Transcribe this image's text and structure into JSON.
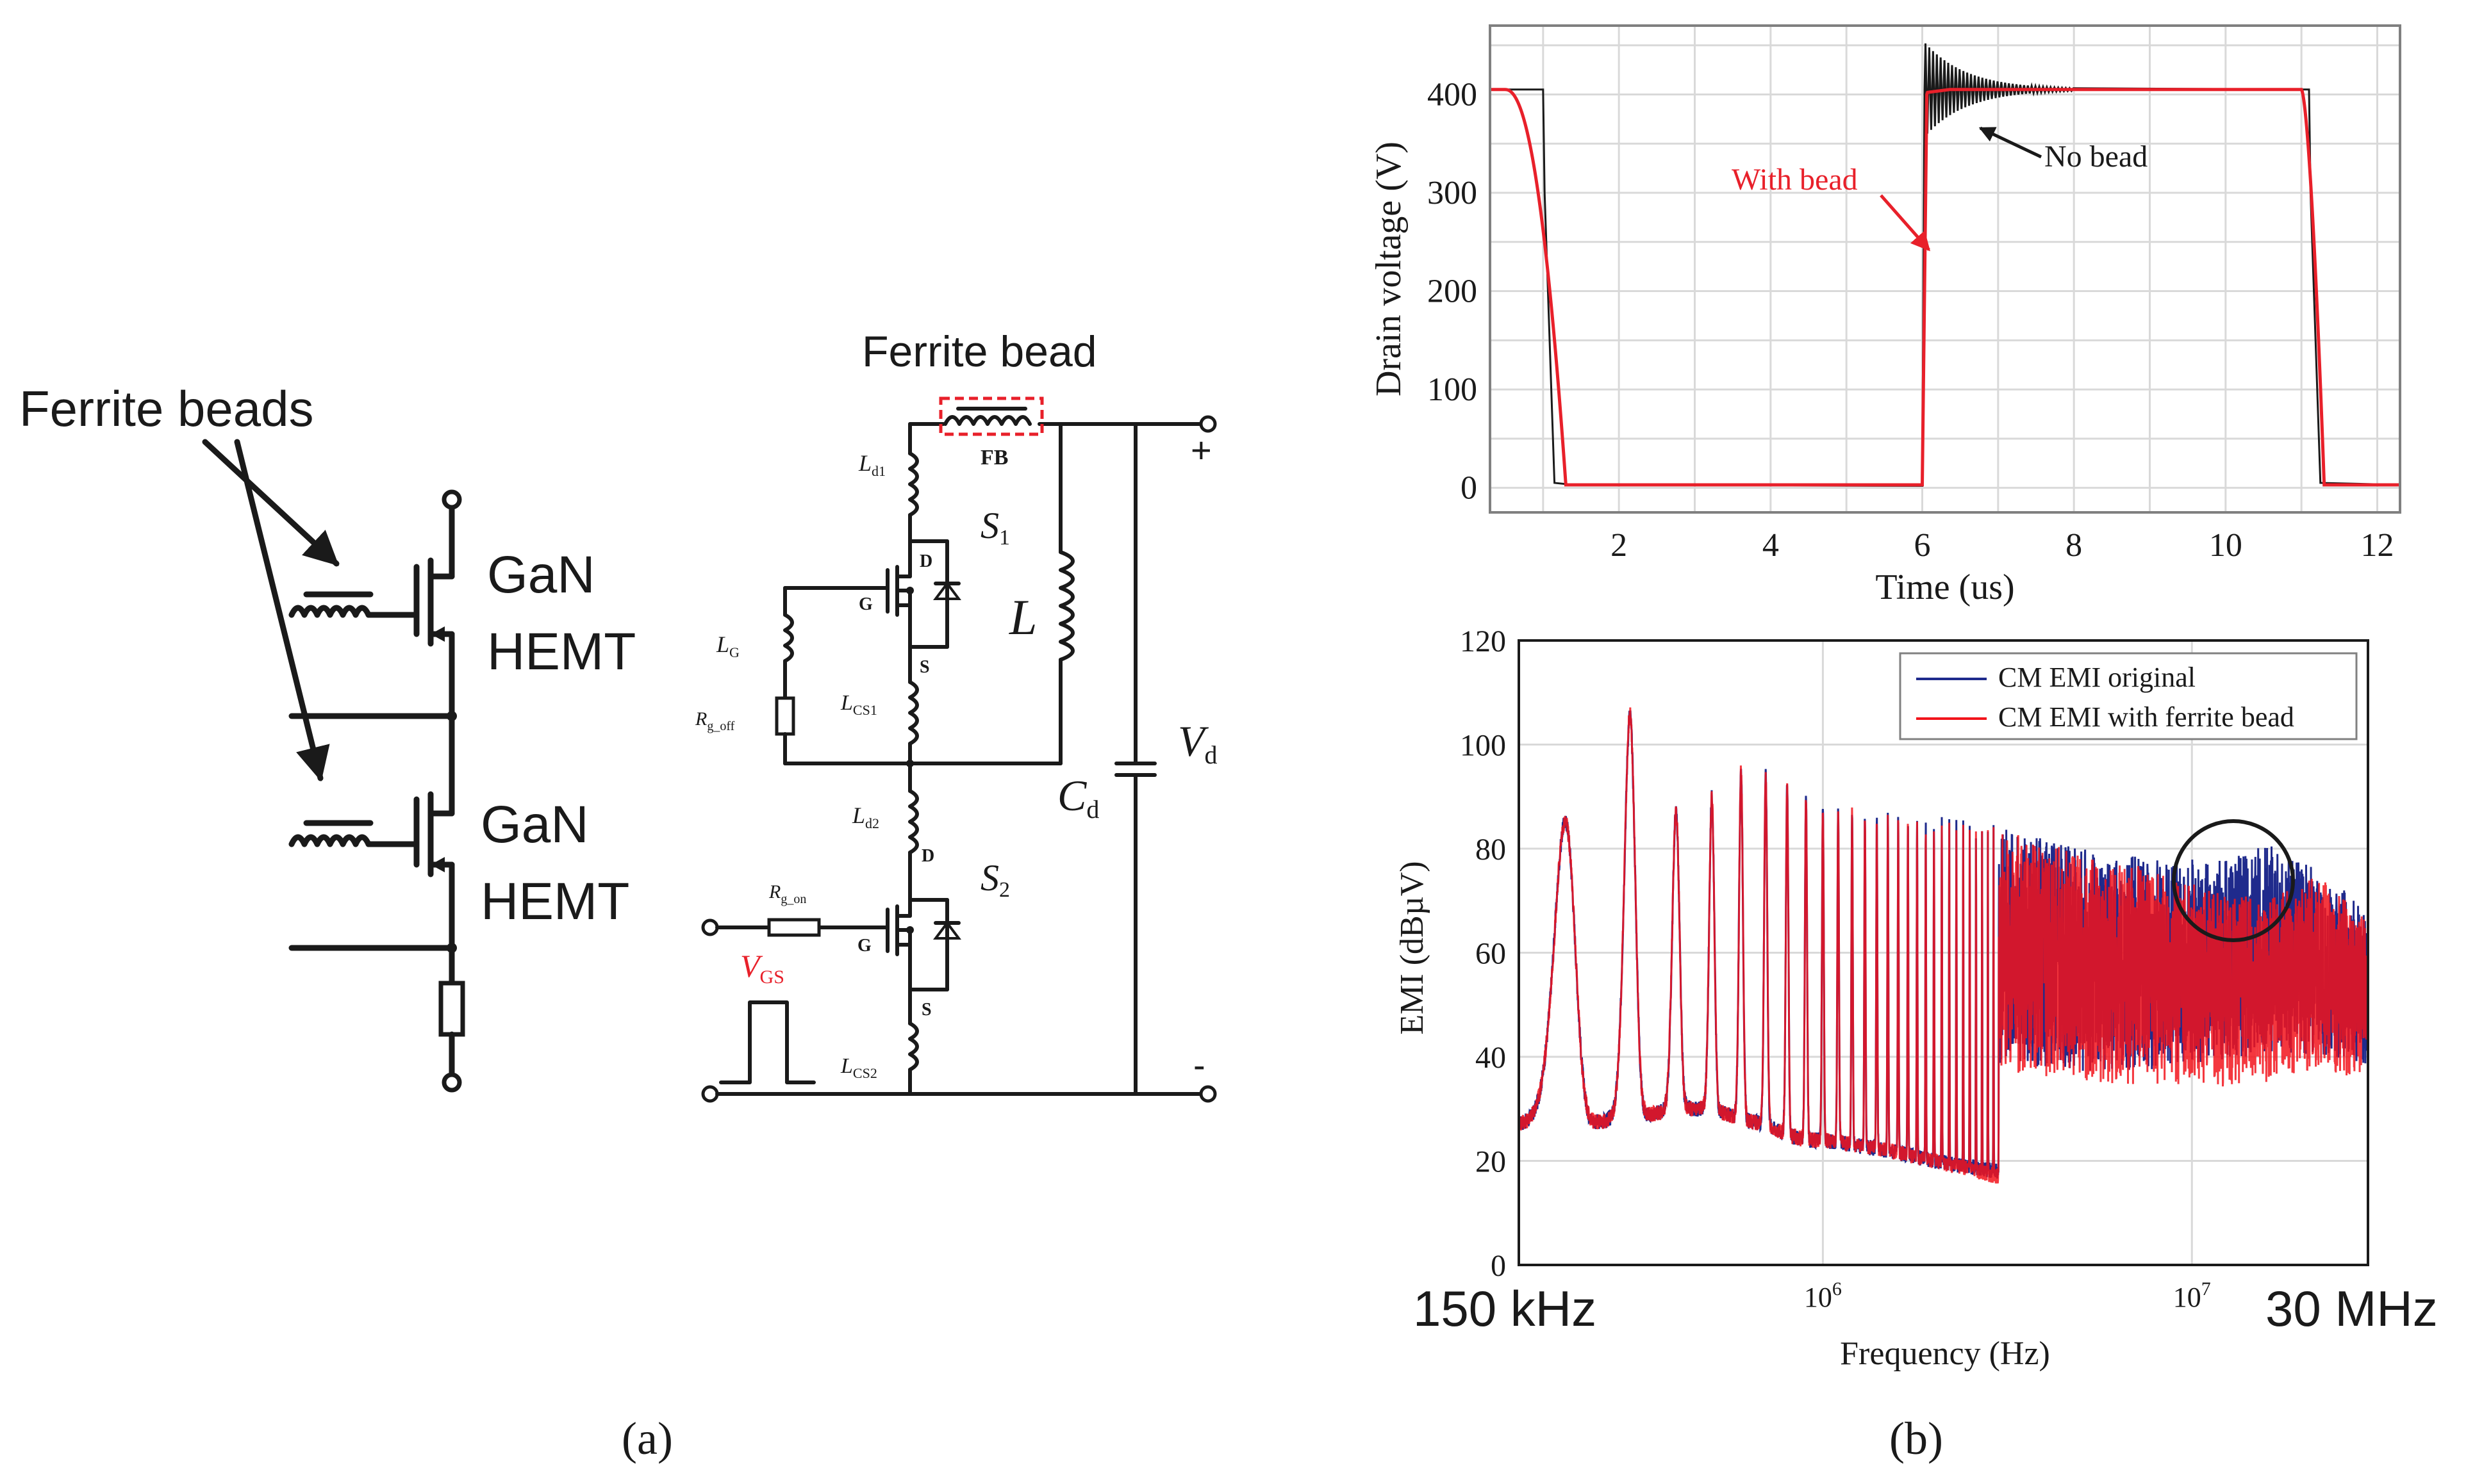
{
  "panel_a": {
    "caption": "(a)",
    "left_circuit": {
      "annotation": "Ferrite beads",
      "device_top_line1": "GaN",
      "device_top_line2": "HEMT",
      "device_bottom_line1": "GaN",
      "device_bottom_line2": "HEMT"
    },
    "right_circuit": {
      "annotation": "Ferrite bead",
      "fb_label": "FB",
      "Ld1": "L",
      "Ld1_sub": "d1",
      "S1": "S",
      "S1_sub": "1",
      "D1": "D",
      "G1": "G",
      "Sterm1": "S",
      "LG": "L",
      "LG_sub": "G",
      "Rg_off": "R",
      "Rg_off_sub": "g_off",
      "Lcs1": "L",
      "Lcs1_sub": "CS1",
      "L_main": "L",
      "Ld2": "L",
      "Ld2_sub": "d2",
      "S2": "S",
      "S2_sub": "2",
      "D2": "D",
      "G2": "G",
      "Sterm2": "S",
      "Rg_on": "R",
      "Rg_on_sub": "g_on",
      "VGS": "V",
      "VGS_sub": "GS",
      "Lcs2": "L",
      "Lcs2_sub": "CS2",
      "Cd": "C",
      "Cd_sub": "d",
      "Vd": "V",
      "Vd_sub": "d",
      "plus": "+",
      "minus": "-"
    }
  },
  "panel_b": {
    "caption": "(b)",
    "freq_left_note": "150 kHz",
    "freq_right_note": "30 MHz"
  },
  "colors": {
    "no_bead": "#1a1a1a",
    "with_bead": "#e8202a",
    "emi_original": "#1f2a8c",
    "emi_ferrite": "#f2141c",
    "vgs_label": "#e8202a",
    "fb_box": "#e8202a"
  },
  "chart_data": [
    {
      "type": "line",
      "title": "",
      "xlabel": "Time (us)",
      "ylabel": "Drain voltage (V)",
      "xlim": [
        0.3,
        12.3
      ],
      "ylim": [
        -25,
        470
      ],
      "xticks": [
        2,
        4,
        6,
        8,
        10,
        12
      ],
      "yticks": [
        0,
        100,
        200,
        300,
        400
      ],
      "grid": true,
      "annotations": [
        {
          "text": "No bead",
          "color": "#1a1a1a"
        },
        {
          "text": "With bead",
          "color": "#e8202a"
        }
      ],
      "series": [
        {
          "name": "No bead",
          "color": "#1a1a1a",
          "x": [
            0.3,
            1.0,
            1.02,
            1.15,
            6.0,
            6.02,
            6.05,
            6.8,
            8.0,
            11.1,
            11.12,
            11.25,
            12.3
          ],
          "y": [
            405,
            405,
            300,
            5,
            2,
            270,
            450,
            415,
            405,
            405,
            300,
            5,
            3
          ]
        },
        {
          "name": "With bead",
          "color": "#e8202a",
          "x": [
            0.3,
            0.5,
            0.8,
            1.0,
            1.1,
            1.3,
            6.0,
            6.05,
            6.3,
            11.0,
            11.05,
            11.2,
            12.3
          ],
          "y": [
            405,
            402,
            350,
            150,
            20,
            3,
            2,
            400,
            405,
            405,
            360,
            30,
            3
          ]
        }
      ]
    },
    {
      "type": "line",
      "title": "",
      "xlabel": "Frequency (Hz)",
      "ylabel": "EMI (dBµV)",
      "xscale": "log",
      "xlim": [
        150000,
        30000000
      ],
      "ylim": [
        0,
        120
      ],
      "xticks": [
        1000000,
        10000000
      ],
      "xtick_labels": [
        {
          "base": "10",
          "exp": "6"
        },
        {
          "base": "10",
          "exp": "7"
        }
      ],
      "yticks": [
        0,
        20,
        40,
        60,
        80,
        100,
        120
      ],
      "grid": true,
      "legend": "top-right",
      "annotations": [
        {
          "text": "circle around CM EMI original peak near 15 MHz"
        }
      ],
      "series": [
        {
          "name": "CM EMI original",
          "color": "#1f2a8c",
          "peak_freqs": [
            200000,
            300000,
            400000,
            500000,
            600000,
            700000,
            800000,
            900000,
            1000000,
            1500000,
            2000000,
            3000000,
            5000000,
            8000000,
            12000000,
            16000000,
            22000000,
            28000000
          ],
          "peak_levels": [
            85,
            106,
            87,
            90,
            95,
            94,
            92,
            90,
            88,
            86,
            85,
            84,
            80,
            78,
            78,
            81,
            76,
            70
          ],
          "floor_levels": [
            27,
            28,
            30,
            30,
            28,
            27,
            25,
            24,
            24,
            22,
            20,
            18,
            19,
            20,
            22,
            24,
            25,
            25
          ]
        },
        {
          "name": "CM EMI with ferrite bead",
          "color": "#f2141c",
          "peak_freqs": [
            200000,
            300000,
            400000,
            500000,
            600000,
            700000,
            800000,
            900000,
            1000000,
            1500000,
            2000000,
            3000000,
            5000000,
            8000000,
            12000000,
            16000000,
            22000000,
            28000000
          ],
          "peak_levels": [
            85,
            106,
            87,
            90,
            95,
            94,
            92,
            90,
            88,
            86,
            85,
            84,
            79,
            76,
            72,
            70,
            75,
            68
          ],
          "floor_levels": [
            27,
            28,
            30,
            30,
            28,
            27,
            25,
            24,
            24,
            22,
            20,
            17,
            16,
            17,
            18,
            20,
            22,
            22
          ]
        }
      ]
    }
  ]
}
